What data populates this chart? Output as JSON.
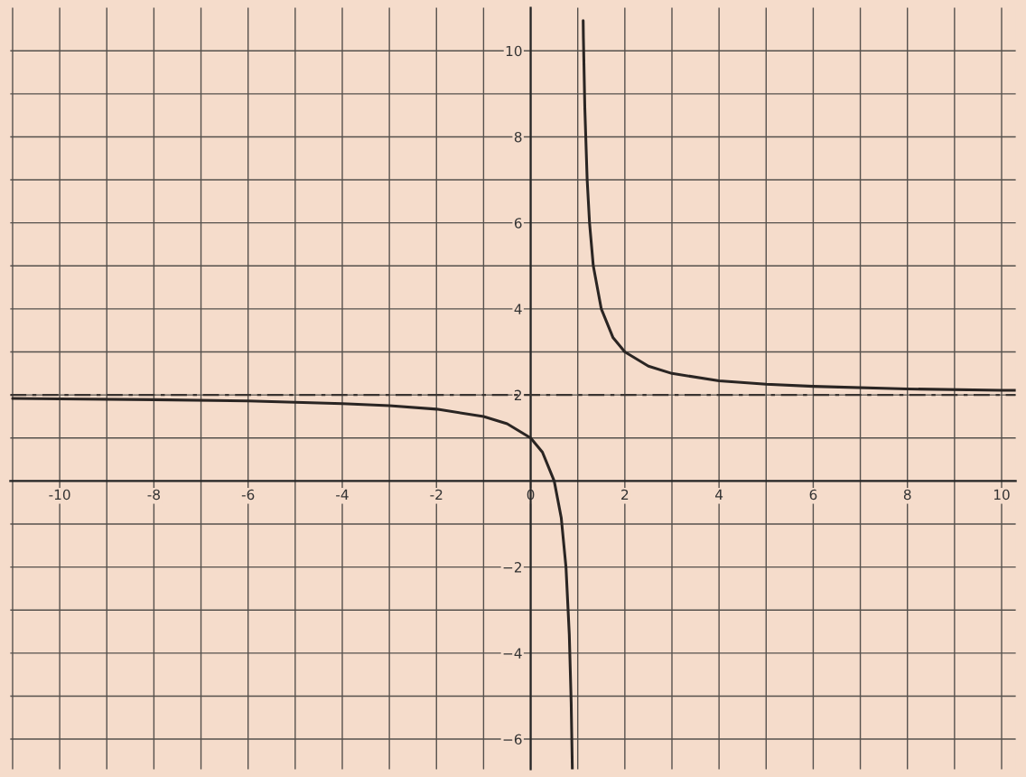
{
  "chart_data": {
    "type": "line",
    "xlim": [
      -11.05,
      10.3
    ],
    "ylim": [
      -6.7,
      11.0
    ],
    "xticks": [
      {
        "value": -11,
        "label": null
      },
      -10,
      {
        "value": -9,
        "label": null
      },
      -8,
      {
        "value": -7,
        "label": null
      },
      -6,
      {
        "value": -5,
        "label": null
      },
      -4,
      {
        "value": -3,
        "label": null
      },
      -2,
      {
        "value": -1,
        "label": null
      },
      0,
      {
        "value": 1,
        "label": null
      },
      2,
      {
        "value": 3,
        "label": null
      },
      4,
      {
        "value": 5,
        "label": null
      },
      6,
      {
        "value": 7,
        "label": null
      },
      8,
      {
        "value": 9,
        "label": null
      },
      10
    ],
    "yticks": [
      {
        "value": -6,
        "label": "−6"
      },
      {
        "value": -5,
        "label": null
      },
      {
        "value": -4,
        "label": "−4"
      },
      {
        "value": -3,
        "label": null
      },
      {
        "value": -2,
        "label": "−2"
      },
      {
        "value": -1,
        "label": null
      },
      {
        "value": 0,
        "label": null
      },
      {
        "value": 1,
        "label": null
      },
      2,
      {
        "value": 3,
        "label": null
      },
      4,
      {
        "value": 5,
        "label": null
      },
      6,
      {
        "value": 7,
        "label": null
      },
      8,
      {
        "value": 9,
        "label": null
      },
      10
    ],
    "grid": true,
    "line_style": "solid",
    "series": [
      {
        "color": "#2a2523",
        "x": [
          -11,
          -10,
          -8,
          -6,
          -4,
          -3,
          -2,
          -1,
          -0.5,
          0,
          0.25,
          0.5,
          0.65,
          0.75,
          0.82,
          0.86,
          0.885
        ],
        "values": [
          1.92,
          1.91,
          1.89,
          1.86,
          1.8,
          1.75,
          1.67,
          1.5,
          1.33,
          1,
          0.67,
          0,
          -0.86,
          -2,
          -3.56,
          -5.14,
          -6.7
        ]
      },
      {
        "color": "#2a2523",
        "x": [
          1.115,
          1.12,
          1.15,
          1.2,
          1.25,
          1.33,
          1.5,
          1.75,
          2,
          2.5,
          3,
          4,
          5,
          6,
          8,
          10,
          10.3
        ],
        "values": [
          10.7,
          10.3,
          8.67,
          7,
          6,
          5,
          4,
          3.33,
          3,
          2.67,
          2.5,
          2.33,
          2.25,
          2.2,
          2.14,
          2.11,
          2.11
        ]
      }
    ],
    "ref_lines": [
      {
        "axis": "y",
        "value": 2,
        "line_style": "dashed",
        "color": "#3a3431"
      }
    ]
  }
}
